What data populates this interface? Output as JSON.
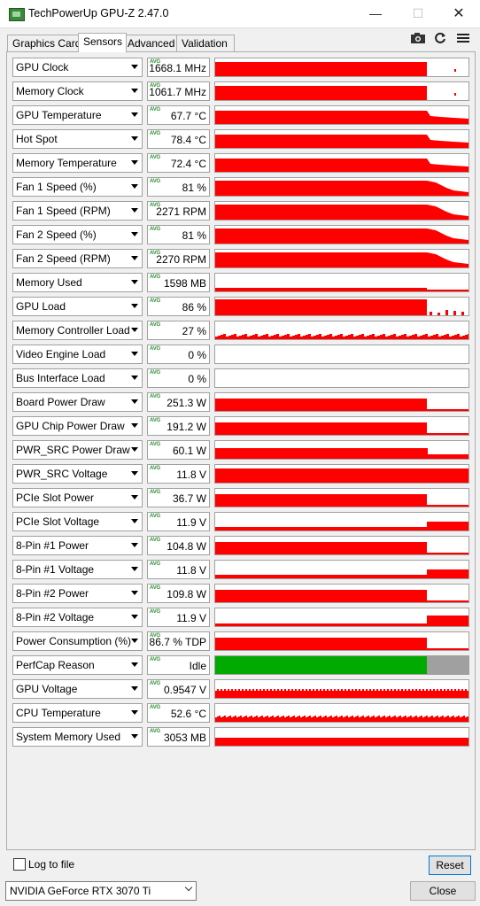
{
  "window": {
    "title": "TechPowerUp GPU-Z 2.47.0"
  },
  "tabs": [
    "Graphics Card",
    "Sensors",
    "Advanced",
    "Validation"
  ],
  "active_tab": "Sensors",
  "avg_badge": "AVG",
  "sensors": [
    {
      "name": "GPU Clock",
      "value": "1668.1 MHz"
    },
    {
      "name": "Memory Clock",
      "value": "1061.7 MHz"
    },
    {
      "name": "GPU Temperature",
      "value": "67.7 °C"
    },
    {
      "name": "Hot Spot",
      "value": "78.4 °C"
    },
    {
      "name": "Memory Temperature",
      "value": "72.4 °C"
    },
    {
      "name": "Fan 1 Speed (%)",
      "value": "81 %"
    },
    {
      "name": "Fan 1 Speed (RPM)",
      "value": "2271 RPM"
    },
    {
      "name": "Fan 2 Speed (%)",
      "value": "81 %"
    },
    {
      "name": "Fan 2 Speed (RPM)",
      "value": "2270 RPM"
    },
    {
      "name": "Memory Used",
      "value": "1598 MB"
    },
    {
      "name": "GPU Load",
      "value": "86 %"
    },
    {
      "name": "Memory Controller Load",
      "value": "27 %"
    },
    {
      "name": "Video Engine Load",
      "value": "0 %"
    },
    {
      "name": "Bus Interface Load",
      "value": "0 %"
    },
    {
      "name": "Board Power Draw",
      "value": "251.3 W"
    },
    {
      "name": "GPU Chip Power Draw",
      "value": "191.2 W"
    },
    {
      "name": "PWR_SRC Power Draw",
      "value": "60.1 W"
    },
    {
      "name": "PWR_SRC Voltage",
      "value": "11.8 V"
    },
    {
      "name": "PCIe Slot Power",
      "value": "36.7 W"
    },
    {
      "name": "PCIe Slot Voltage",
      "value": "11.9 V"
    },
    {
      "name": "8-Pin #1 Power",
      "value": "104.8 W"
    },
    {
      "name": "8-Pin #1 Voltage",
      "value": "11.8 V"
    },
    {
      "name": "8-Pin #2 Power",
      "value": "109.8 W"
    },
    {
      "name": "8-Pin #2 Voltage",
      "value": "11.9 V"
    },
    {
      "name": "Power Consumption (%)",
      "value": "86.7 % TDP"
    },
    {
      "name": "PerfCap Reason",
      "value": "Idle"
    },
    {
      "name": "GPU Voltage",
      "value": "0.9547 V"
    },
    {
      "name": "CPU Temperature",
      "value": "52.6 °C"
    },
    {
      "name": "System Memory Used",
      "value": "3053 MB"
    }
  ],
  "footer": {
    "log_label": "Log to file",
    "reset_label": "Reset",
    "gpu_select": "NVIDIA GeForce RTX 3070 Ti",
    "close_label": "Close"
  },
  "colors": {
    "graph": "#ff0000",
    "perfcap_active": "#00aa00",
    "perfcap_idle": "#a0a0a0"
  }
}
